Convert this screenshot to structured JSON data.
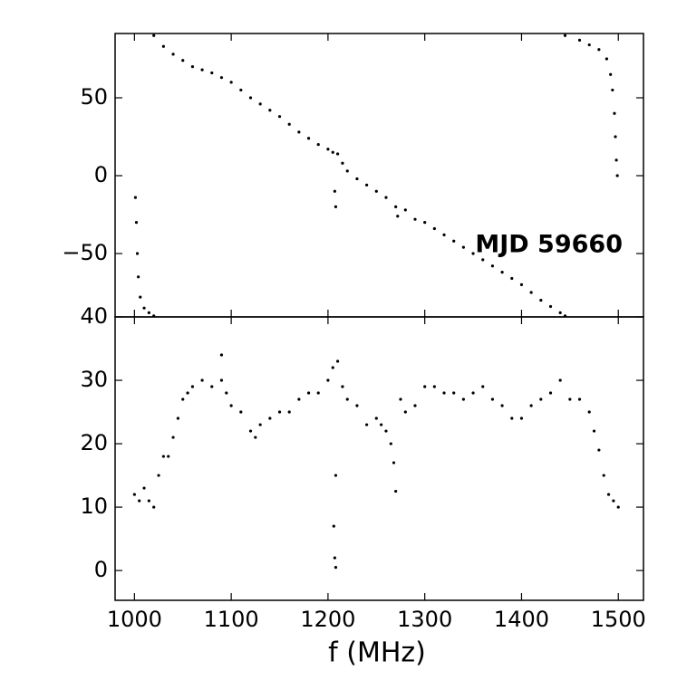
{
  "chart_data": [
    {
      "type": "scatter",
      "annotation": "MJD 59660",
      "color": "#000000",
      "xlim": [
        980,
        1526
      ],
      "xticks": [
        1000,
        1100,
        1200,
        1300,
        1400,
        1500
      ],
      "ylim": [
        -90.7,
        91.3
      ],
      "yticks": [
        {
          "value": -50,
          "label": "−50"
        },
        0,
        50
      ],
      "x": [
        1001,
        1002,
        1003,
        1004,
        1006,
        1010,
        1015,
        1020,
        1020,
        1030,
        1040,
        1050,
        1060,
        1070,
        1080,
        1090,
        1100,
        1110,
        1120,
        1130,
        1140,
        1150,
        1160,
        1170,
        1180,
        1190,
        1200,
        1205,
        1207,
        1208,
        1210,
        1215,
        1220,
        1230,
        1240,
        1250,
        1260,
        1270,
        1272,
        1280,
        1290,
        1300,
        1310,
        1320,
        1330,
        1340,
        1350,
        1360,
        1370,
        1380,
        1390,
        1400,
        1410,
        1420,
        1430,
        1440,
        1445,
        1445,
        1460,
        1470,
        1480,
        1488,
        1492,
        1494,
        1496,
        1497,
        1498,
        1499
      ],
      "values": [
        -14,
        -30,
        -50,
        -65,
        -78,
        -85,
        -88,
        -90,
        90,
        83,
        78,
        74,
        70,
        68,
        66,
        63,
        60,
        55,
        50,
        46,
        42,
        38,
        33,
        28,
        24,
        20,
        17,
        15,
        -10,
        -20,
        14,
        8,
        3,
        -2,
        -6,
        -10,
        -14,
        -20,
        -26,
        -22,
        -28,
        -30,
        -34,
        -38,
        -42,
        -46,
        -50,
        -54,
        -58,
        -62,
        -66,
        -70,
        -75,
        -80,
        -84,
        -88,
        -90,
        90,
        87,
        84,
        81,
        75,
        65,
        55,
        40,
        25,
        10,
        0
      ]
    },
    {
      "type": "scatter",
      "xlabel": "f (MHz)",
      "color": "#000000",
      "xlim": [
        980,
        1526
      ],
      "xticks": [
        1000,
        1100,
        1200,
        1300,
        1400,
        1500
      ],
      "ylim": [
        -4.7,
        40
      ],
      "yticks": [
        0,
        10,
        20,
        30,
        40
      ],
      "x": [
        1000,
        1005,
        1010,
        1015,
        1020,
        1025,
        1030,
        1035,
        1040,
        1045,
        1050,
        1055,
        1060,
        1070,
        1080,
        1090,
        1090,
        1095,
        1100,
        1110,
        1120,
        1125,
        1130,
        1140,
        1150,
        1160,
        1170,
        1180,
        1190,
        1200,
        1205,
        1206,
        1207,
        1208,
        1208,
        1210,
        1215,
        1220,
        1230,
        1240,
        1250,
        1255,
        1260,
        1265,
        1268,
        1270,
        1275,
        1280,
        1290,
        1300,
        1310,
        1320,
        1330,
        1340,
        1350,
        1360,
        1370,
        1380,
        1390,
        1400,
        1410,
        1420,
        1430,
        1440,
        1450,
        1460,
        1470,
        1475,
        1480,
        1485,
        1490,
        1495,
        1500
      ],
      "values": [
        12,
        11,
        13,
        11,
        10,
        15,
        18,
        18,
        21,
        24,
        27,
        28,
        29,
        30,
        29,
        30,
        34,
        28,
        26,
        25,
        22,
        21,
        23,
        24,
        25,
        25,
        27,
        28,
        28,
        30,
        32,
        7,
        2,
        15,
        0.5,
        33,
        29,
        27,
        26,
        23,
        24,
        23,
        22,
        20,
        17,
        12.5,
        27,
        25,
        26,
        29,
        29,
        28,
        28,
        27,
        28,
        29,
        27,
        26,
        24,
        24,
        26,
        27,
        28,
        30,
        27,
        27,
        25,
        22,
        19,
        15,
        12,
        11,
        10
      ]
    }
  ]
}
